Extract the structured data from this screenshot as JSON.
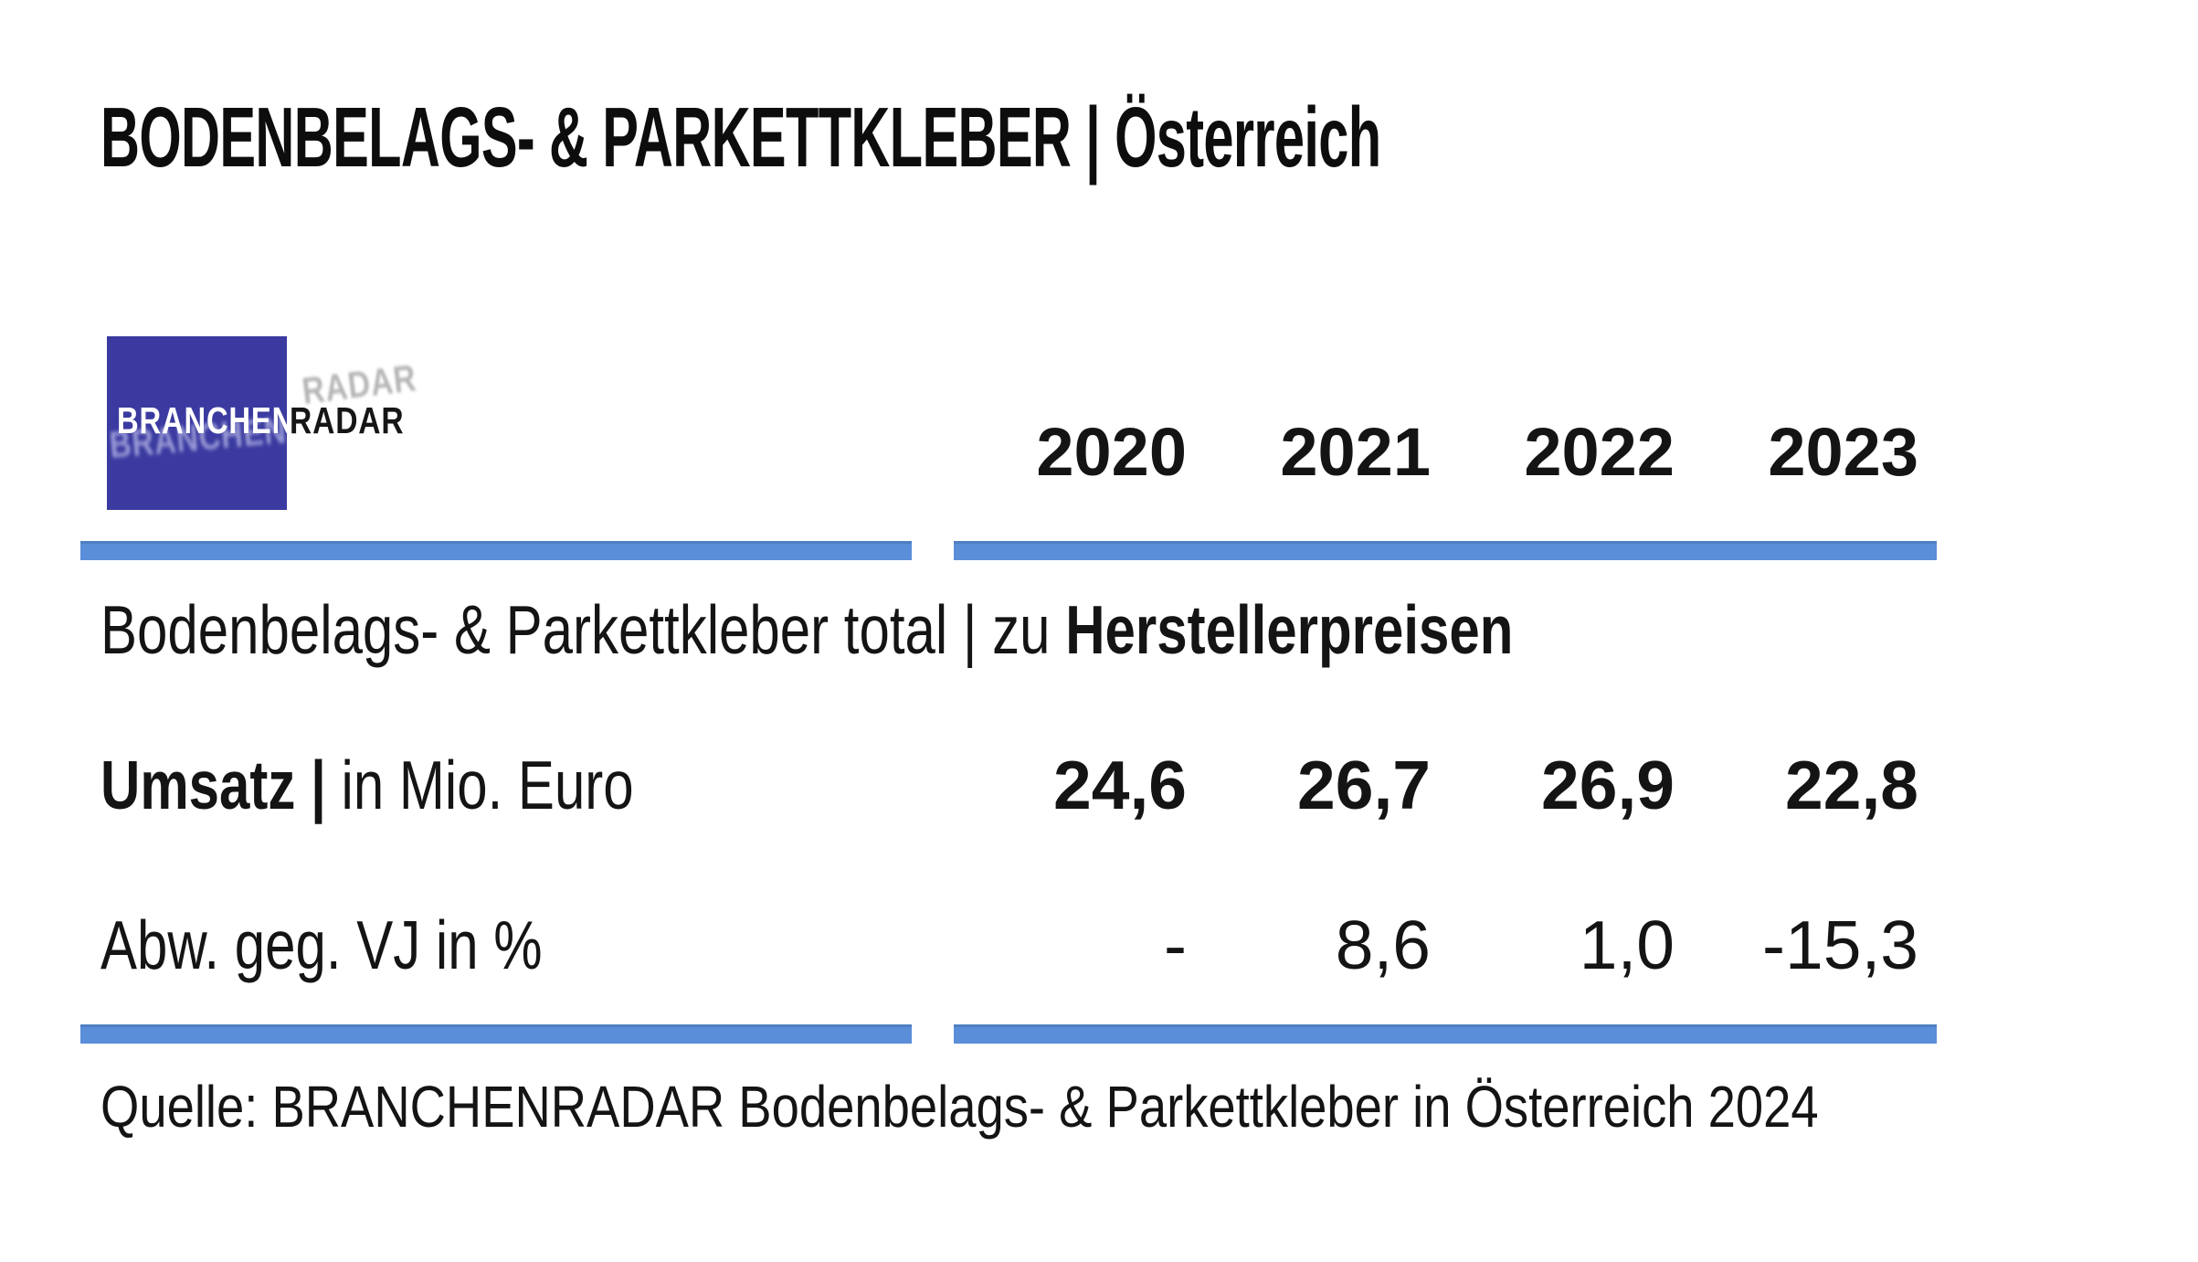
{
  "page": {
    "title": "BODENBELAGS- & PARKETTKLEBER | Österreich",
    "background_color": "#ffffff",
    "text_color": "#141414"
  },
  "logo": {
    "part1": "BRANCHEN",
    "part2": "RADAR",
    "box_color": "#3a3aa0",
    "part1_color": "#ffffff",
    "part2_color": "#161616"
  },
  "table": {
    "rule_color": "#5b8ed9",
    "years": [
      "2020",
      "2021",
      "2022",
      "2023"
    ],
    "section_label_regular": "Bodenbelags- & Parkettkleber total | zu ",
    "section_label_bold": "Herstellerpreisen",
    "rows": [
      {
        "label_bold": "Umsatz |",
        "label_regular": " in Mio. Euro",
        "values": [
          "24,6",
          "26,7",
          "26,9",
          "22,8"
        ]
      },
      {
        "label_bold": "",
        "label_regular": "Abw. geg. VJ in %",
        "values": [
          "-",
          "8,6",
          "1,0",
          "-15,3"
        ]
      }
    ]
  },
  "source": {
    "text": "Quelle: BRANCHENRADAR Bodenbelags- & Parkettkleber in Österreich 2024"
  },
  "chart_data": {
    "type": "table",
    "title": "BODENBELAGS- & PARKETTKLEBER | Österreich",
    "subtitle": "Bodenbelags- & Parkettkleber total | zu Herstellerpreisen",
    "categories": [
      "2020",
      "2021",
      "2022",
      "2023"
    ],
    "series": [
      {
        "name": "Umsatz | in Mio. Euro",
        "values": [
          24.6,
          26.7,
          26.9,
          22.8
        ]
      },
      {
        "name": "Abw. geg. VJ in %",
        "values": [
          null,
          8.6,
          1.0,
          -15.3
        ]
      }
    ],
    "number_format": "decimal-comma",
    "source": "Quelle: BRANCHENRADAR Bodenbelags- & Parkettkleber in Österreich 2024"
  }
}
